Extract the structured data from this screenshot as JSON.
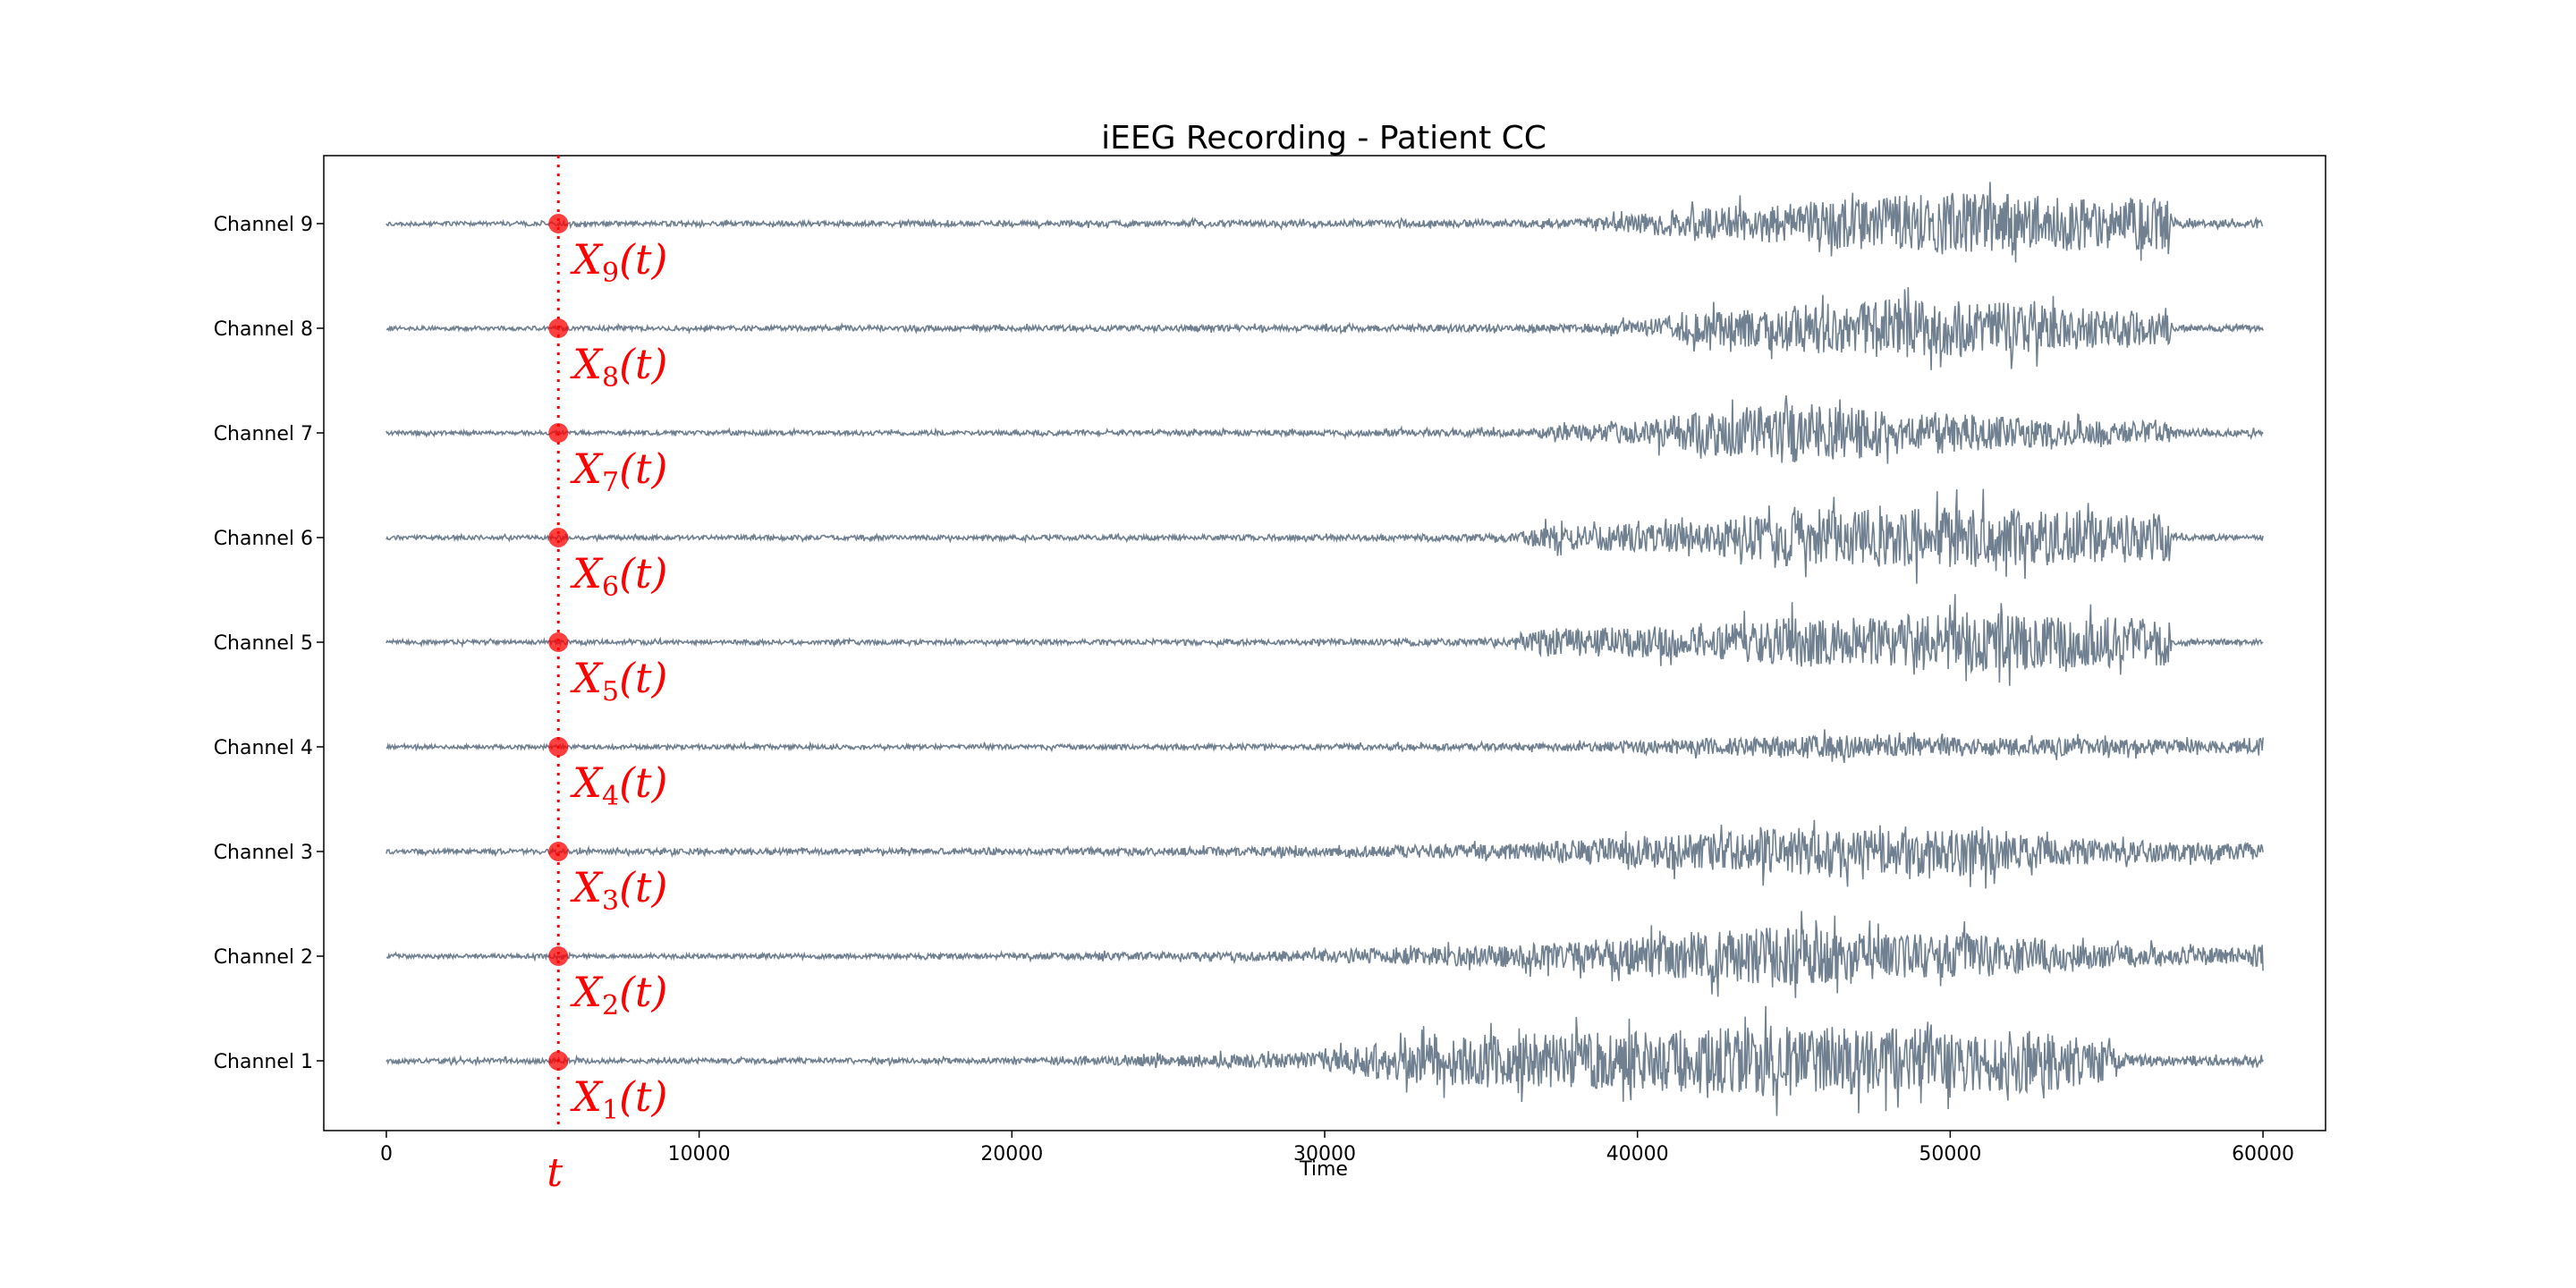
{
  "chart_data": {
    "type": "line",
    "title": "iEEG Recording - Patient CC",
    "xlabel": "Time",
    "ylabel": "",
    "xlim": [
      -2000,
      62000
    ],
    "xticks": [
      0,
      10000,
      20000,
      30000,
      40000,
      50000,
      60000
    ],
    "grid": false,
    "line_color": "#708090",
    "annotation_color": "#ff0000",
    "time_marker": {
      "x": 5500,
      "label": "t",
      "style": "dotted"
    },
    "series": [
      {
        "name": "Channel 9",
        "marker_label": "X",
        "marker_index": "9",
        "envelope": {
          "x": [
            0,
            20000,
            30000,
            38000,
            40000,
            42000,
            45000,
            48000,
            50000,
            53000,
            57000,
            57100,
            60000
          ],
          "amplitude": [
            0.05,
            0.07,
            0.08,
            0.1,
            0.25,
            0.4,
            0.55,
            0.7,
            0.8,
            0.7,
            0.65,
            0.1,
            0.08
          ]
        }
      },
      {
        "name": "Channel 8",
        "marker_label": "X",
        "marker_index": "8",
        "envelope": {
          "x": [
            0,
            20000,
            30000,
            38000,
            40000,
            42000,
            45000,
            48000,
            50000,
            53000,
            57000,
            57100,
            60000
          ],
          "amplitude": [
            0.05,
            0.07,
            0.08,
            0.1,
            0.2,
            0.4,
            0.6,
            0.75,
            0.75,
            0.6,
            0.4,
            0.08,
            0.08
          ]
        }
      },
      {
        "name": "Channel 7",
        "marker_label": "X",
        "marker_index": "7",
        "envelope": {
          "x": [
            0,
            20000,
            30000,
            36000,
            40000,
            42000,
            45000,
            48000,
            50000,
            53000,
            57000,
            57100,
            60000
          ],
          "amplitude": [
            0.05,
            0.06,
            0.07,
            0.1,
            0.3,
            0.55,
            0.8,
            0.6,
            0.5,
            0.35,
            0.25,
            0.1,
            0.08
          ]
        }
      },
      {
        "name": "Channel 6",
        "marker_label": "X",
        "marker_index": "6",
        "envelope": {
          "x": [
            0,
            20000,
            30000,
            36000,
            37000,
            42000,
            45000,
            48000,
            50000,
            53000,
            57000,
            57100,
            60000
          ],
          "amplitude": [
            0.05,
            0.06,
            0.07,
            0.1,
            0.3,
            0.4,
            0.75,
            0.7,
            0.8,
            0.75,
            0.6,
            0.08,
            0.07
          ]
        }
      },
      {
        "name": "Channel 5",
        "marker_label": "X",
        "marker_index": "5",
        "envelope": {
          "x": [
            0,
            20000,
            30000,
            36000,
            37000,
            42000,
            45000,
            48000,
            50000,
            53000,
            57000,
            57100,
            60000
          ],
          "amplitude": [
            0.05,
            0.06,
            0.07,
            0.1,
            0.35,
            0.4,
            0.65,
            0.6,
            0.8,
            0.7,
            0.6,
            0.08,
            0.07
          ]
        }
      },
      {
        "name": "Channel 4",
        "marker_label": "X",
        "marker_index": "4",
        "envelope": {
          "x": [
            0,
            20000,
            30000,
            38000,
            42000,
            45000,
            48000,
            50000,
            55000,
            59500,
            60000
          ],
          "amplitude": [
            0.05,
            0.06,
            0.07,
            0.1,
            0.2,
            0.3,
            0.25,
            0.25,
            0.2,
            0.15,
            0.25
          ]
        }
      },
      {
        "name": "Channel 3",
        "marker_label": "X",
        "marker_index": "3",
        "envelope": {
          "x": [
            0,
            20000,
            30000,
            36000,
            40000,
            45000,
            48000,
            51000,
            53000,
            55000,
            60000
          ],
          "amplitude": [
            0.06,
            0.08,
            0.12,
            0.2,
            0.4,
            0.6,
            0.55,
            0.65,
            0.4,
            0.3,
            0.2
          ]
        }
      },
      {
        "name": "Channel 2",
        "marker_label": "X",
        "marker_index": "2",
        "envelope": {
          "x": [
            0,
            20000,
            28000,
            32000,
            36000,
            40000,
            44000,
            48000,
            50000,
            55000,
            59500,
            60000
          ],
          "amplitude": [
            0.05,
            0.07,
            0.12,
            0.2,
            0.3,
            0.5,
            0.8,
            0.55,
            0.6,
            0.3,
            0.2,
            0.4
          ]
        }
      },
      {
        "name": "Channel 1",
        "marker_label": "X",
        "marker_index": "1",
        "envelope": {
          "x": [
            0,
            20000,
            29500,
            33000,
            36000,
            40000,
            44000,
            47000,
            50000,
            53000,
            55000,
            55500,
            60000
          ],
          "amplitude": [
            0.06,
            0.07,
            0.2,
            0.6,
            0.7,
            0.75,
            0.9,
            0.85,
            0.8,
            0.8,
            0.5,
            0.15,
            0.12
          ]
        }
      }
    ]
  }
}
